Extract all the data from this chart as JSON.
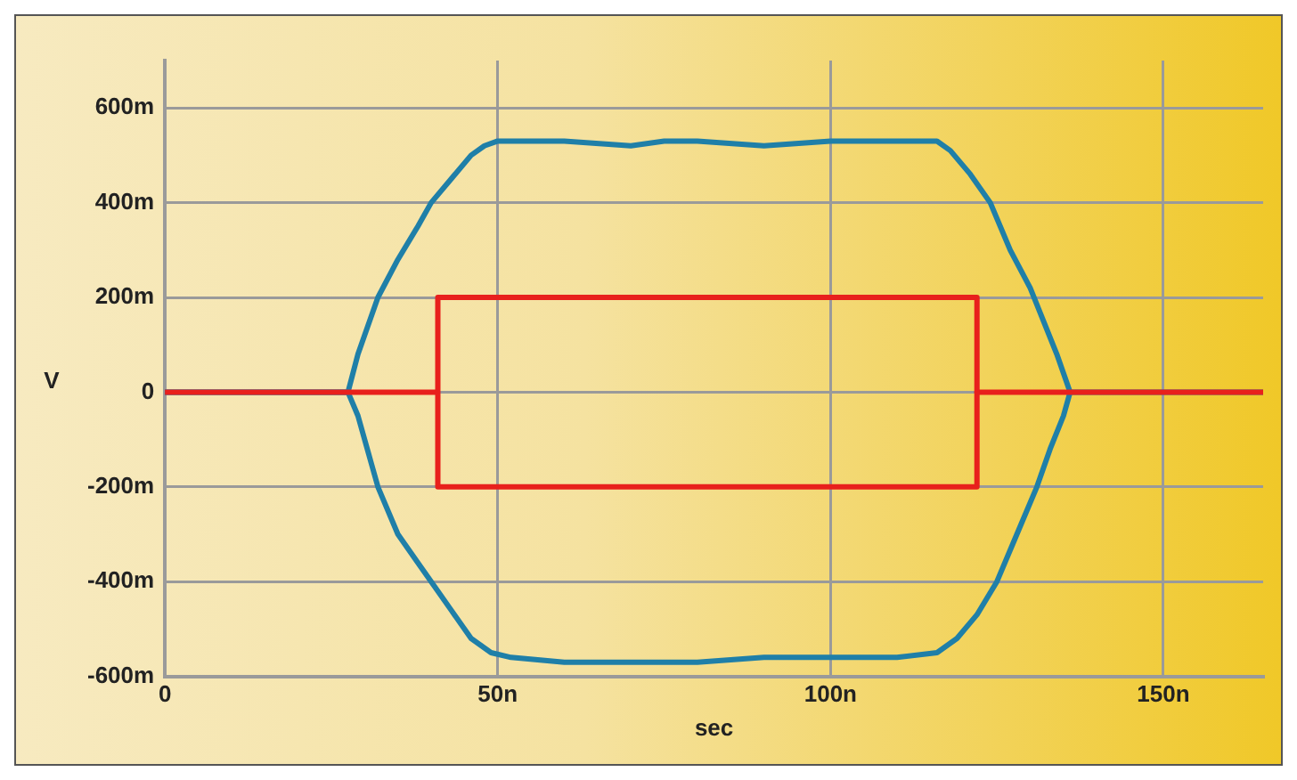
{
  "chart_data": {
    "type": "line",
    "xlabel": "sec",
    "ylabel": "V",
    "xlim": [
      0,
      165
    ],
    "ylim": [
      -600,
      700
    ],
    "xticks": [
      0,
      {
        "value": 50,
        "label": "50n"
      },
      {
        "value": 100,
        "label": "100n"
      },
      {
        "value": 150,
        "label": "150n"
      }
    ],
    "yticks": [
      {
        "value": -600,
        "label": "-600m"
      },
      {
        "value": -400,
        "label": "-400m"
      },
      {
        "value": -200,
        "label": "-200m"
      },
      0,
      {
        "value": 200,
        "label": "200m"
      },
      {
        "value": 400,
        "label": "400m"
      },
      {
        "value": 600,
        "label": "600m"
      }
    ],
    "grid": true,
    "legend": false,
    "marker": "none",
    "line_style": "solid",
    "series": [
      {
        "color": "#e8201c",
        "x": [
          0,
          41,
          41,
          122,
          122,
          41,
          41
        ],
        "values": [
          0,
          0,
          200,
          200,
          -200,
          -200,
          0
        ]
      },
      {
        "color": "#e8201c",
        "x": [
          122,
          165
        ],
        "values": [
          0,
          0
        ]
      },
      {
        "color": "#1f7fa8",
        "x": [
          0,
          27.5,
          29,
          30,
          32,
          35,
          38,
          40,
          43,
          46,
          48,
          50,
          60,
          70,
          75,
          80,
          90,
          100,
          110,
          116,
          118,
          121,
          124,
          127,
          130,
          132,
          134,
          136
        ],
        "values": [
          0,
          0,
          80,
          120,
          200,
          280,
          350,
          400,
          450,
          500,
          520,
          530,
          530,
          520,
          530,
          530,
          520,
          530,
          530,
          530,
          510,
          460,
          400,
          300,
          220,
          150,
          80,
          0
        ]
      },
      {
        "color": "#1f7fa8",
        "x": [
          0,
          27.5,
          29,
          31,
          32,
          35,
          38,
          40,
          43,
          46,
          49,
          52,
          60,
          70,
          80,
          90,
          100,
          110,
          116,
          119,
          122,
          125,
          128,
          131,
          133,
          135,
          136,
          165
        ],
        "values": [
          0,
          0,
          -50,
          -150,
          -200,
          -300,
          -360,
          -400,
          -460,
          -520,
          -550,
          -560,
          -570,
          -570,
          -570,
          -560,
          -560,
          -560,
          -550,
          -520,
          -470,
          -400,
          -300,
          -200,
          -120,
          -50,
          0,
          0
        ]
      }
    ]
  }
}
